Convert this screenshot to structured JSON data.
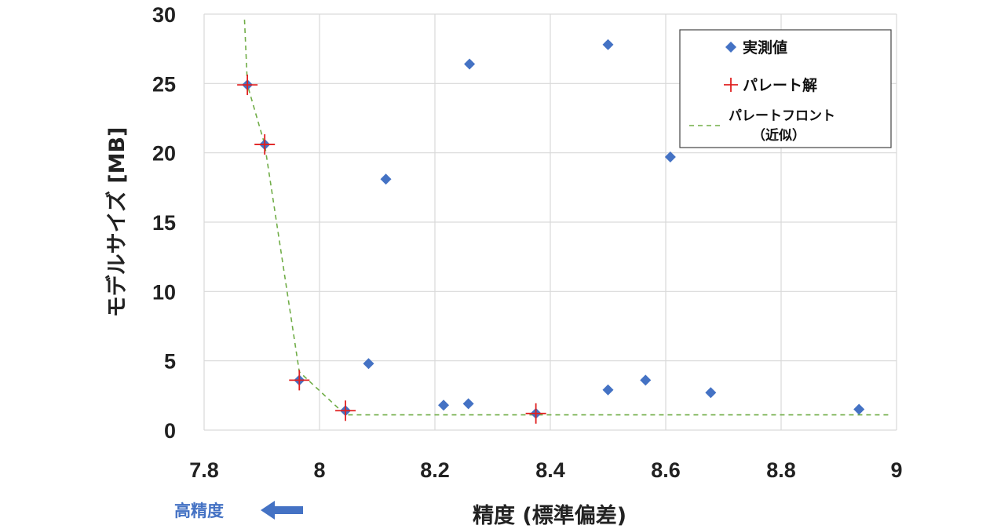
{
  "colors": {
    "measured": "#4472C4",
    "pareto": "#E02020",
    "front": "#70AD47",
    "grid": "#D9D9D9",
    "arrow": "#4472C4"
  },
  "chart_data": {
    "type": "scatter",
    "xlabel": "精度 (標準偏差)",
    "ylabel": "モデルサイズ [MB]",
    "xlim": [
      7.8,
      9
    ],
    "ylim": [
      0,
      30
    ],
    "xticks": [
      7.8,
      8,
      8.2,
      8.4,
      8.6,
      8.8,
      9
    ],
    "xtick_labels": [
      "7.8",
      "8",
      "8.2",
      "8.4",
      "8.6",
      "8.8",
      "9"
    ],
    "yticks": [
      0,
      5,
      10,
      15,
      20,
      25,
      30
    ],
    "ytick_labels": [
      "0",
      "5",
      "10",
      "15",
      "20",
      "25",
      "30"
    ],
    "grid": true,
    "legend_position": "top-right",
    "series": [
      {
        "name": "実測値",
        "marker": "diamond",
        "points": [
          [
            7.875,
            24.9
          ],
          [
            7.905,
            20.6
          ],
          [
            7.965,
            3.6
          ],
          [
            8.045,
            1.4
          ],
          [
            8.085,
            4.8
          ],
          [
            8.115,
            18.1
          ],
          [
            8.215,
            1.8
          ],
          [
            8.258,
            1.9
          ],
          [
            8.26,
            26.4
          ],
          [
            8.375,
            1.2
          ],
          [
            8.5,
            2.9
          ],
          [
            8.5,
            27.8
          ],
          [
            8.565,
            3.6
          ],
          [
            8.608,
            19.7
          ],
          [
            8.678,
            2.7
          ],
          [
            8.935,
            1.5
          ]
        ]
      },
      {
        "name": "パレート解",
        "marker": "plus",
        "points": [
          [
            7.875,
            24.9
          ],
          [
            7.905,
            20.6
          ],
          [
            7.965,
            3.6
          ],
          [
            8.045,
            1.4
          ],
          [
            8.375,
            1.2
          ]
        ]
      },
      {
        "name": "パレートフロント",
        "name_note": "（近似）",
        "style": "dashed-line",
        "points": [
          [
            7.87,
            29.6
          ],
          [
            7.875,
            24.9
          ],
          [
            7.905,
            20.6
          ],
          [
            7.965,
            4.2
          ],
          [
            8.045,
            1.1
          ],
          [
            8.375,
            1.1
          ],
          [
            8.99,
            1.1
          ]
        ]
      }
    ],
    "annotation": {
      "text": "高精度",
      "arrow_direction": "left"
    }
  }
}
